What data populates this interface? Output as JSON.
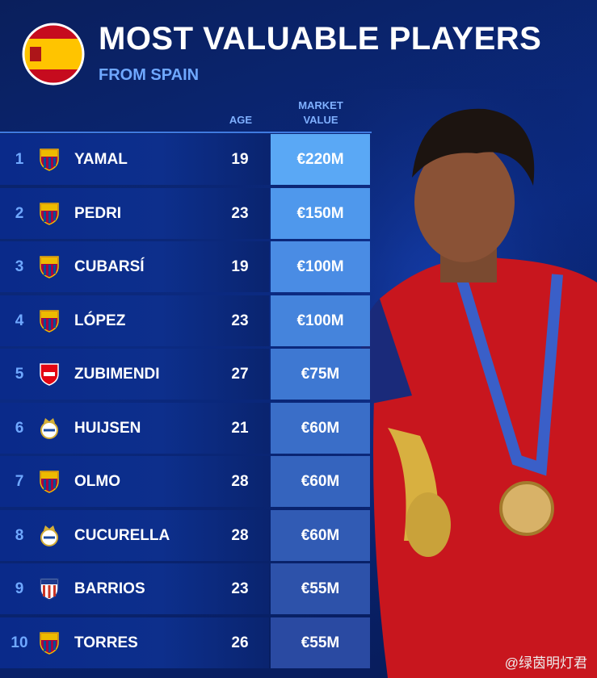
{
  "header": {
    "title": "MOST VALUABLE PLAYERS",
    "subtitle": "FROM SPAIN"
  },
  "table": {
    "columns": [
      "AGE",
      "MARKET VALUE"
    ],
    "rows": [
      {
        "rank": 1,
        "name": "YAMAL",
        "age": 19,
        "value": "€220M"
      },
      {
        "rank": 2,
        "name": "PEDRI",
        "age": 23,
        "value": "€150M"
      },
      {
        "rank": 3,
        "name": "CUBARSÍ",
        "age": 19,
        "value": "€100M"
      },
      {
        "rank": 4,
        "name": "LÓPEZ",
        "age": 23,
        "value": "€100M"
      },
      {
        "rank": 5,
        "name": "ZUBIMENDI",
        "age": 27,
        "value": "€75M"
      },
      {
        "rank": 6,
        "name": "HUIJSEN",
        "age": 21,
        "value": "€60M"
      },
      {
        "rank": 7,
        "name": "OLMO",
        "age": 28,
        "value": "€60M"
      },
      {
        "rank": 8,
        "name": "CUCURELLA",
        "age": 28,
        "value": "€60M"
      },
      {
        "rank": 9,
        "name": "BARRIOS",
        "age": 23,
        "value": "€55M"
      },
      {
        "rank": 10,
        "name": "TORRES",
        "age": 26,
        "value": "€55M"
      }
    ]
  },
  "watermark": "@绿茵明灯君"
}
